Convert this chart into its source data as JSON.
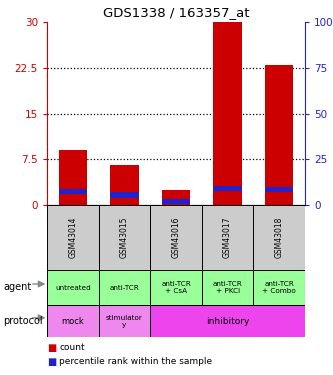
{
  "title": "GDS1338 / 163357_at",
  "samples": [
    "GSM43014",
    "GSM43015",
    "GSM43016",
    "GSM43017",
    "GSM43018"
  ],
  "count_values": [
    9.0,
    6.5,
    2.5,
    30.0,
    23.0
  ],
  "percentile_values": [
    7.5,
    5.5,
    2.0,
    9.0,
    8.5
  ],
  "left_ylim": [
    0,
    30
  ],
  "right_ylim": [
    0,
    100
  ],
  "left_yticks": [
    0,
    7.5,
    15,
    22.5,
    30
  ],
  "left_yticklabels": [
    "0",
    "7.5",
    "15",
    "22.5",
    "30"
  ],
  "right_yticks": [
    0,
    25,
    50,
    75,
    100
  ],
  "right_yticklabels": [
    "0",
    "25",
    "50",
    "75",
    "100%"
  ],
  "bar_color": "#cc0000",
  "percentile_color": "#2222cc",
  "agent_labels": [
    "untreated",
    "anti-TCR",
    "anti-TCR\n+ CsA",
    "anti-TCR\n+ PKCi",
    "anti-TCR\n+ Combo"
  ],
  "agent_bg": "#99ff99",
  "sample_bg": "#cccccc",
  "protocol_mock_bg": "#ee88ee",
  "protocol_stim_bg": "#ee88ee",
  "protocol_inhib_bg": "#ee44ee",
  "legend_count_color": "#cc0000",
  "legend_percentile_color": "#2222cc",
  "dotted_yticks": [
    7.5,
    15,
    22.5
  ],
  "left_axis_color": "#cc0000",
  "right_axis_color": "#2222cc"
}
